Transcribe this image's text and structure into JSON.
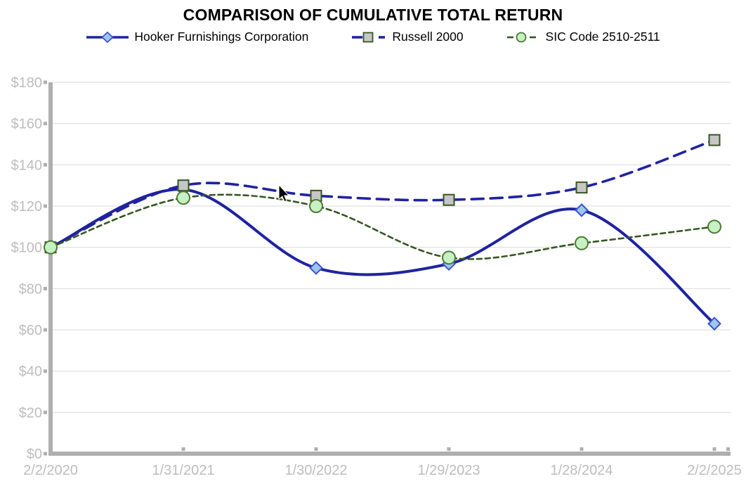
{
  "title": "COMPARISON OF CUMULATIVE TOTAL RETURN",
  "chart_data": {
    "type": "line",
    "title": "COMPARISON OF CUMULATIVE TOTAL RETURN",
    "categories": [
      "2/2/2020",
      "1/31/2021",
      "1/30/2022",
      "1/29/2023",
      "1/28/2024",
      "2/2/2025"
    ],
    "series": [
      {
        "name": "Hooker Furnishings Corporation",
        "values": [
          100,
          128,
          90,
          92,
          118,
          63
        ],
        "line_style": "solid",
        "line_width": 4,
        "marker": "diamond"
      },
      {
        "name": "Russell 2000",
        "values": [
          100,
          130,
          125,
          123,
          129,
          152
        ],
        "line_style": "long-dash",
        "line_width": 3.6,
        "marker": "square"
      },
      {
        "name": "SIC Code 2510-2511",
        "values": [
          100,
          124,
          120,
          95,
          102,
          110
        ],
        "line_style": "short-dash",
        "line_width": 2.6,
        "marker": "circle"
      }
    ],
    "xlabel": "",
    "ylabel": "",
    "ylim": [
      0,
      180
    ],
    "ytick_step": 20,
    "ytick_labels": [
      "$0",
      "$20",
      "$40",
      "$60",
      "$80",
      "$100",
      "$120",
      "$140",
      "$160",
      "$180"
    ],
    "grid": true,
    "legend_position": "top",
    "smoothed_lines": true
  },
  "colors": {
    "navy": "#1F23A0",
    "green": "#375623",
    "diamond_fill": "#9FC5EC",
    "diamond_stroke": "#3A55D4",
    "square_fill": "#C6C6C6",
    "square_stroke": "#375623",
    "circle_fill": "#C7F0C4",
    "circle_stroke": "#4C7A32",
    "axis": "#AFAFAF",
    "grid": "#D9D9D9",
    "tick_label": "#BDBDBD",
    "title": "#000000"
  }
}
